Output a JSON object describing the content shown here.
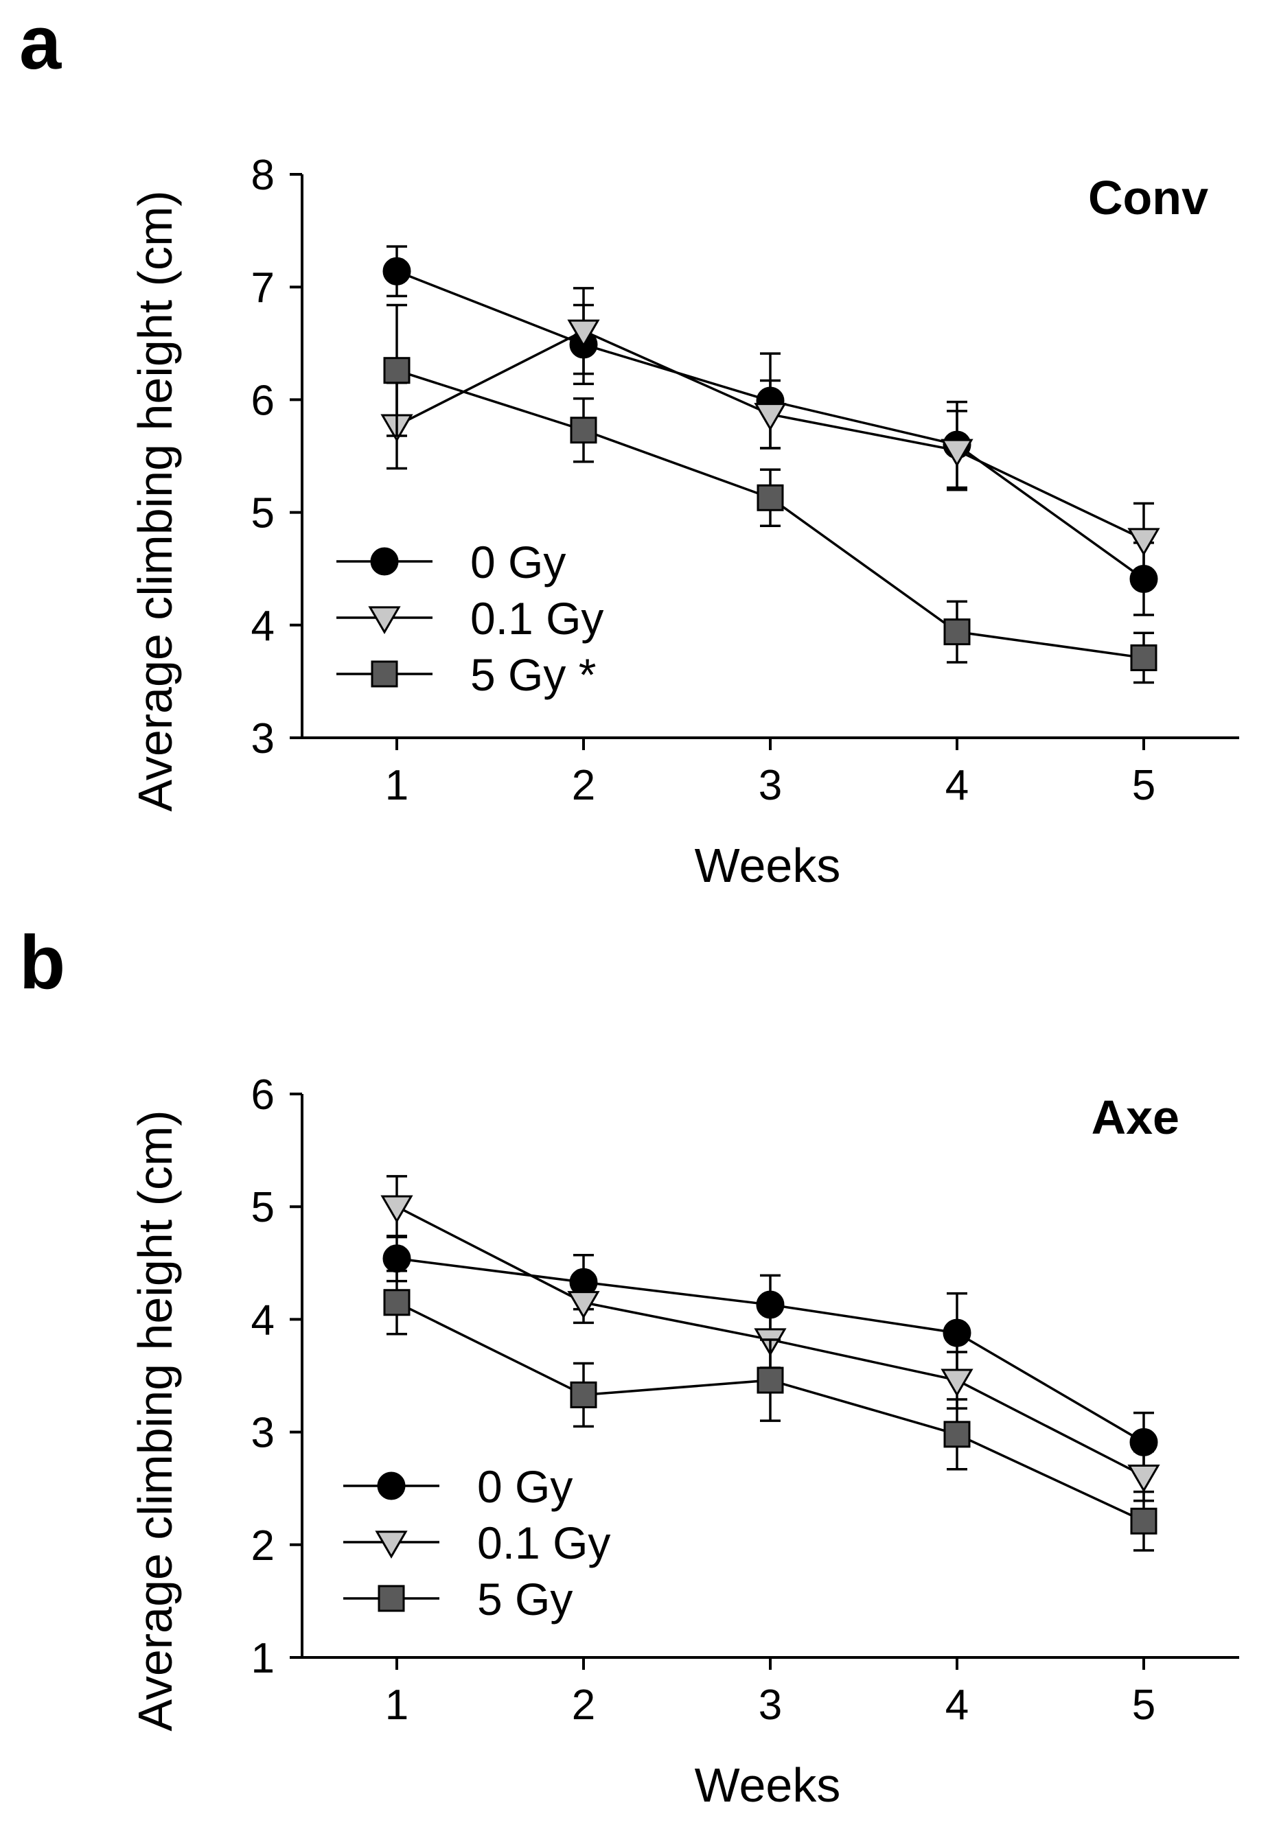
{
  "chart_data": [
    {
      "panel_label": "a",
      "type": "line",
      "title": "Conv",
      "xlabel": "Weeks",
      "ylabel": "Average climbing height (cm)",
      "x": [
        1,
        2,
        3,
        4,
        5
      ],
      "x_tick_labels": [
        "1",
        "2",
        "3",
        "4",
        "5"
      ],
      "ylim": [
        3,
        8
      ],
      "y_ticks": [
        3,
        4,
        5,
        6,
        7,
        8
      ],
      "y_tick_labels": [
        "3",
        "4",
        "5",
        "6",
        "7",
        "8"
      ],
      "legend_position": "lower-left",
      "series": [
        {
          "name": "0 Gy",
          "marker": "circle",
          "fill": "#000000",
          "values": [
            7.14,
            6.49,
            5.99,
            5.6,
            4.41
          ],
          "errors": [
            0.22,
            0.35,
            0.42,
            0.38,
            0.32
          ]
        },
        {
          "name": "0.1 Gy",
          "marker": "triangle-down",
          "fill": "#c8c8c8",
          "values": [
            5.77,
            6.61,
            5.87,
            5.55,
            4.76
          ],
          "errors": [
            0.38,
            0.38,
            0.3,
            0.35,
            0.32
          ]
        },
        {
          "name": "5 Gy *",
          "marker": "square",
          "fill": "#5a5a5a",
          "values": [
            6.26,
            5.73,
            5.13,
            3.94,
            3.71
          ],
          "errors": [
            0.58,
            0.28,
            0.25,
            0.27,
            0.22
          ]
        }
      ]
    },
    {
      "panel_label": "b",
      "type": "line",
      "title": "Axe",
      "xlabel": "Weeks",
      "ylabel": "Average climbing height (cm)",
      "x": [
        1,
        2,
        3,
        4,
        5
      ],
      "x_tick_labels": [
        "1",
        "2",
        "3",
        "4",
        "5"
      ],
      "ylim": [
        1,
        6
      ],
      "y_ticks": [
        1,
        2,
        3,
        4,
        5,
        6
      ],
      "y_tick_labels": [
        "1",
        "2",
        "3",
        "4",
        "5",
        "6"
      ],
      "legend_position": "lower-left",
      "series": [
        {
          "name": "0 Gy",
          "marker": "circle",
          "fill": "#000000",
          "values": [
            4.54,
            4.33,
            4.13,
            3.88,
            2.91
          ],
          "errors": [
            0.2,
            0.24,
            0.26,
            0.35,
            0.26
          ]
        },
        {
          "name": "0.1 Gy",
          "marker": "triangle-down",
          "fill": "#c8c8c8",
          "values": [
            5.0,
            4.15,
            3.82,
            3.46,
            2.61
          ],
          "errors": [
            0.27,
            0.18,
            0.25,
            0.25,
            0.22
          ]
        },
        {
          "name": "5 Gy",
          "marker": "square",
          "fill": "#5a5a5a",
          "values": [
            4.15,
            3.33,
            3.46,
            2.98,
            2.21
          ],
          "errors": [
            0.28,
            0.28,
            0.36,
            0.31,
            0.26
          ]
        }
      ]
    }
  ]
}
